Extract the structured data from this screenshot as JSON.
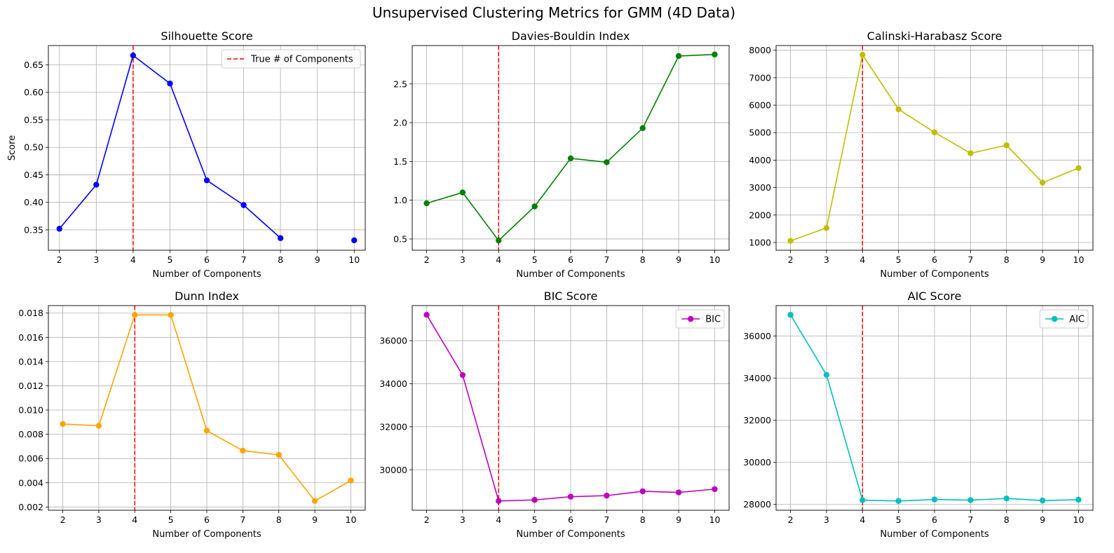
{
  "figure": {
    "title": "Unsupervised Clustering Metrics for GMM (4D Data)"
  },
  "chart_data": [
    {
      "type": "line",
      "title": "Silhouette Score",
      "xlabel": "Number of Components",
      "ylabel": "Score",
      "x": [
        2,
        3,
        4,
        5,
        6,
        7,
        8,
        10
      ],
      "series": [
        {
          "values": [
            0.352,
            0.432,
            0.667,
            0.616,
            0.44,
            0.395,
            0.335,
            0.331
          ],
          "color": "#0000ff"
        }
      ],
      "xlim": [
        1.7,
        10.3
      ],
      "ylim": [
        0.313,
        0.685
      ],
      "xticks": [
        2,
        3,
        4,
        5,
        6,
        7,
        8,
        9,
        10
      ],
      "yticks": [
        "0.35",
        "0.40",
        "0.45",
        "0.50",
        "0.55",
        "0.60",
        "0.65"
      ],
      "vline": {
        "x": 4,
        "color": "#ff0000",
        "label": "True # of Components"
      },
      "legend": {
        "entries": [
          "True # of Components"
        ],
        "placement": "upper right"
      },
      "grid": true
    },
    {
      "type": "line",
      "title": "Davies-Bouldin Index",
      "xlabel": "Number of Components",
      "ylabel": "",
      "x": [
        2,
        3,
        4,
        5,
        6,
        7,
        8,
        9,
        10
      ],
      "series": [
        {
          "values": [
            0.96,
            1.1,
            0.48,
            0.92,
            1.54,
            1.49,
            1.93,
            2.86,
            2.88
          ],
          "color": "#008000"
        }
      ],
      "xlim": [
        1.6,
        10.4
      ],
      "ylim": [
        0.355,
        2.995
      ],
      "xticks": [
        2,
        3,
        4,
        5,
        6,
        7,
        8,
        9,
        10
      ],
      "yticks": [
        "0.5",
        "1.0",
        "1.5",
        "2.0",
        "2.5"
      ],
      "vline": {
        "x": 4,
        "color": "#ff0000"
      },
      "grid": true
    },
    {
      "type": "line",
      "title": "Calinski-Harabasz Score",
      "xlabel": "Number of Components",
      "ylabel": "",
      "x": [
        2,
        3,
        4,
        5,
        6,
        7,
        8,
        9,
        10
      ],
      "series": [
        {
          "values": [
            1060,
            1530,
            7830,
            5850,
            5010,
            4250,
            4540,
            3180,
            3710
          ],
          "color": "#bfbf00"
        }
      ],
      "xlim": [
        1.6,
        10.4
      ],
      "ylim": [
        720,
        8170
      ],
      "xticks": [
        2,
        3,
        4,
        5,
        6,
        7,
        8,
        9,
        10
      ],
      "yticks": [
        "1000",
        "2000",
        "3000",
        "4000",
        "5000",
        "6000",
        "7000",
        "8000"
      ],
      "vline": {
        "x": 4,
        "color": "#ff0000"
      },
      "grid": true
    },
    {
      "type": "line",
      "title": "Dunn Index",
      "xlabel": "Number of Components",
      "ylabel": "",
      "x": [
        2,
        3,
        4,
        5,
        6,
        7,
        8,
        9,
        10
      ],
      "series": [
        {
          "values": [
            0.00885,
            0.0087,
            0.01785,
            0.01785,
            0.0083,
            0.00665,
            0.0063,
            0.0025,
            0.00418
          ],
          "color": "#ffa500"
        }
      ],
      "xlim": [
        1.6,
        10.4
      ],
      "ylim": [
        0.00173,
        0.01862
      ],
      "xticks": [
        2,
        3,
        4,
        5,
        6,
        7,
        8,
        9,
        10
      ],
      "yticks": [
        "0.002",
        "0.004",
        "0.006",
        "0.008",
        "0.010",
        "0.012",
        "0.014",
        "0.016",
        "0.018"
      ],
      "vline": {
        "x": 4,
        "color": "#ff0000"
      },
      "grid": true
    },
    {
      "type": "line",
      "title": "BIC Score",
      "xlabel": "Number of Components",
      "ylabel": "",
      "x": [
        2,
        3,
        4,
        5,
        6,
        7,
        8,
        9,
        10
      ],
      "series": [
        {
          "name": "BIC",
          "values": [
            37200,
            34400,
            28550,
            28600,
            28750,
            28800,
            29000,
            28950,
            29100
          ],
          "color": "#bf00bf"
        }
      ],
      "xlim": [
        1.6,
        10.4
      ],
      "ylim": [
        28120,
        37630
      ],
      "xticks": [
        2,
        3,
        4,
        5,
        6,
        7,
        8,
        9,
        10
      ],
      "yticks": [
        "30000",
        "32000",
        "34000",
        "36000"
      ],
      "vline": {
        "x": 4,
        "color": "#ff0000"
      },
      "legend": {
        "entries": [
          "BIC"
        ],
        "placement": "upper right"
      },
      "grid": true
    },
    {
      "type": "line",
      "title": "AIC Score",
      "xlabel": "Number of Components",
      "ylabel": "",
      "x": [
        2,
        3,
        4,
        5,
        6,
        7,
        8,
        9,
        10
      ],
      "series": [
        {
          "name": "AIC",
          "values": [
            37000,
            34150,
            28200,
            28160,
            28230,
            28200,
            28280,
            28180,
            28220
          ],
          "color": "#00bfbf"
        }
      ],
      "xlim": [
        1.6,
        10.4
      ],
      "ylim": [
        27720,
        37440
      ],
      "xticks": [
        2,
        3,
        4,
        5,
        6,
        7,
        8,
        9,
        10
      ],
      "yticks": [
        "28000",
        "30000",
        "32000",
        "34000",
        "36000"
      ],
      "vline": {
        "x": 4,
        "color": "#ff0000"
      },
      "legend": {
        "entries": [
          "AIC"
        ],
        "placement": "upper right"
      },
      "grid": true
    }
  ]
}
